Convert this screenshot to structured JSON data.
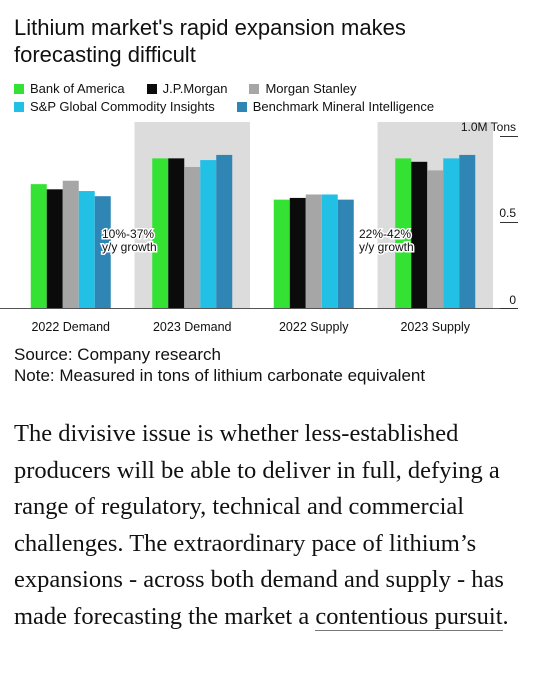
{
  "chart_data": {
    "type": "bar",
    "title": "Lithium market's rapid expansion makes forecasting difficult",
    "categories": [
      "2022 Demand",
      "2023 Demand",
      "2022 Supply",
      "2023 Supply"
    ],
    "highlighted_categories": [
      "2023 Demand",
      "2023 Supply"
    ],
    "series": [
      {
        "name": "Bank of America",
        "color": "#33e233",
        "values": [
          0.72,
          0.87,
          0.63,
          0.87
        ]
      },
      {
        "name": "J.P.Morgan",
        "color": "#0b0b0b",
        "values": [
          0.69,
          0.87,
          0.64,
          0.85
        ]
      },
      {
        "name": "Morgan Stanley",
        "color": "#a6a6a6",
        "values": [
          0.74,
          0.82,
          0.66,
          0.8
        ]
      },
      {
        "name": "S&P Global Commodity Insights",
        "color": "#23c0e6",
        "values": [
          0.68,
          0.86,
          0.66,
          0.87
        ]
      },
      {
        "name": "Benchmark Mineral Intelligence",
        "color": "#2f86b5",
        "values": [
          0.65,
          0.89,
          0.63,
          0.89
        ]
      }
    ],
    "ylim": [
      0,
      1.0
    ],
    "y_ticks": [
      {
        "value": 0,
        "label": "0"
      },
      {
        "value": 0.5,
        "label": "0.5"
      },
      {
        "value": 1.0,
        "label": "1.0M Tons"
      }
    ],
    "annotations": [
      {
        "line1": "10%-37%",
        "line2": "y/y growth"
      },
      {
        "line1": "22%-42%",
        "line2": "y/y growth"
      }
    ],
    "grid": false,
    "legend_position": "top"
  },
  "footer": {
    "source": "Source: Company research",
    "note": "Note: Measured in tons of lithium carbonate equivalent"
  },
  "article": {
    "text": "The divisive issue is whether less-established producers will be able to deliver in full, defying a range of regulatory, technical and commercial challenges. The extraordinary pace of lithium’s expansions - across both demand and supply - has made forecasting the market a ",
    "link_text": "contentious pursuit",
    "tail": "."
  }
}
